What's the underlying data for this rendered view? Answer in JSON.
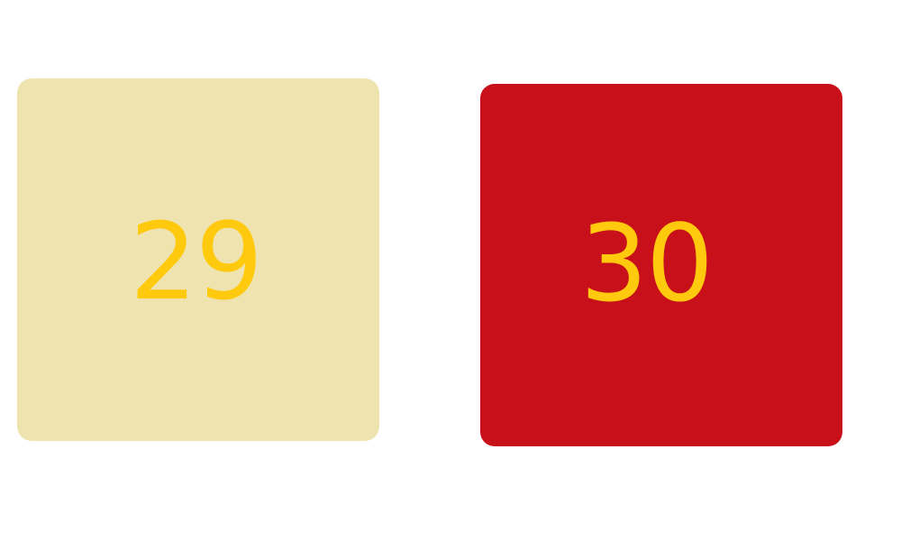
{
  "tiles": [
    {
      "number": "29",
      "background": "#EFE4B0",
      "text_color": "#FFC90E"
    },
    {
      "number": "30",
      "background": "#C8101A",
      "text_color": "#FFC90E"
    }
  ],
  "colors": {
    "page_background": "#FFFFFF"
  }
}
